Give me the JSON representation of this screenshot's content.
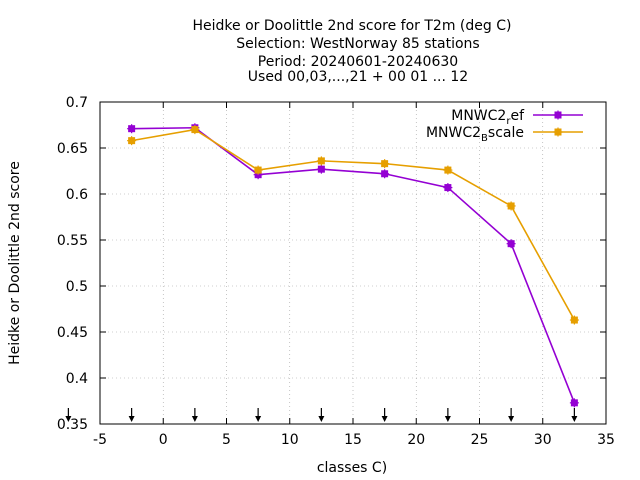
{
  "chart_data": {
    "type": "line",
    "title_lines": [
      "Heidke or Doolittle 2nd score  for T2m (deg C)",
      "Selection: WestNorway     85 stations",
      "Period: 20240601-20240630",
      "Used 00,03,...,21 + 00 01 ... 12"
    ],
    "xlabel": "classes C)",
    "ylabel": "Heidke or Doolittle 2nd score",
    "xlim": [
      -5,
      35
    ],
    "ylim": [
      0.35,
      0.7
    ],
    "xticks": [
      -5,
      0,
      5,
      10,
      15,
      20,
      25,
      30,
      35
    ],
    "yticks": [
      0.35,
      0.4,
      0.45,
      0.5,
      0.55,
      0.6,
      0.65,
      0.7
    ],
    "ytick_labels": [
      "0.35",
      "0.4",
      "0.45",
      "0.5",
      "0.55",
      "0.6",
      "0.65",
      "0.7"
    ],
    "grid": true,
    "legend_position": "top-right",
    "class_arrows_x": [
      -7.5,
      -2.5,
      2.5,
      7.5,
      12.5,
      17.5,
      22.5,
      27.5,
      32.5
    ],
    "series": [
      {
        "name_main": "MNWC2",
        "name_sub": "r",
        "name_rest": "ef",
        "color": "#9400d3",
        "x": [
          -2.5,
          2.5,
          7.5,
          12.5,
          17.5,
          22.5,
          27.5,
          32.5
        ],
        "values": [
          0.671,
          0.672,
          0.621,
          0.627,
          0.622,
          0.607,
          0.546,
          0.373
        ]
      },
      {
        "name_main": "MNWC2",
        "name_sub": "B",
        "name_rest": "scale",
        "color": "#e69f00",
        "x": [
          -2.5,
          2.5,
          7.5,
          12.5,
          17.5,
          22.5,
          27.5,
          32.5
        ],
        "values": [
          0.658,
          0.67,
          0.626,
          0.636,
          0.633,
          0.626,
          0.587,
          0.463
        ]
      }
    ]
  }
}
